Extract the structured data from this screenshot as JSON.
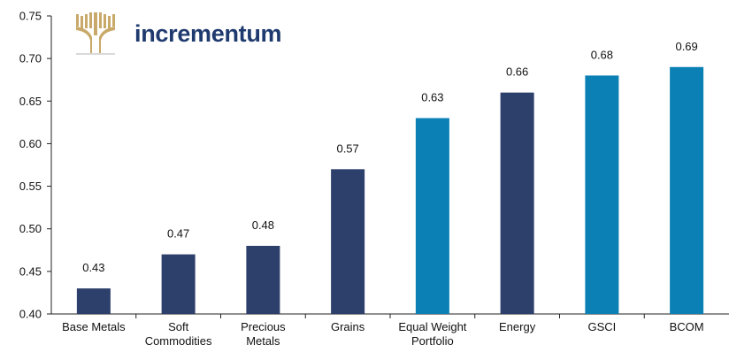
{
  "brand": {
    "name": "incrementum",
    "mark_color": "#c9a96a",
    "text_color": "#1f3a6e"
  },
  "chart_data": {
    "type": "bar",
    "categories": [
      [
        "Base Metals"
      ],
      [
        "Soft",
        "Commodities"
      ],
      [
        "Precious",
        "Metals"
      ],
      [
        "Grains"
      ],
      [
        "Equal Weight",
        "Portfolio"
      ],
      [
        "Energy"
      ],
      [
        "GSCI"
      ],
      [
        "BCOM"
      ]
    ],
    "values": [
      0.43,
      0.47,
      0.48,
      0.57,
      0.63,
      0.66,
      0.68,
      0.69
    ],
    "value_labels": [
      "0.43",
      "0.47",
      "0.48",
      "0.57",
      "0.63",
      "0.66",
      "0.68",
      "0.69"
    ],
    "bar_colors": [
      "#2d3f6b",
      "#2d3f6b",
      "#2d3f6b",
      "#2d3f6b",
      "#0a80b5",
      "#2d3f6b",
      "#0a80b5",
      "#0a80b5"
    ],
    "yticks": [
      "0.40",
      "0.45",
      "0.50",
      "0.55",
      "0.60",
      "0.65",
      "0.70",
      "0.75"
    ],
    "ylim": [
      0.4,
      0.75
    ],
    "grid": false,
    "title": "",
    "xlabel": "",
    "ylabel": ""
  }
}
